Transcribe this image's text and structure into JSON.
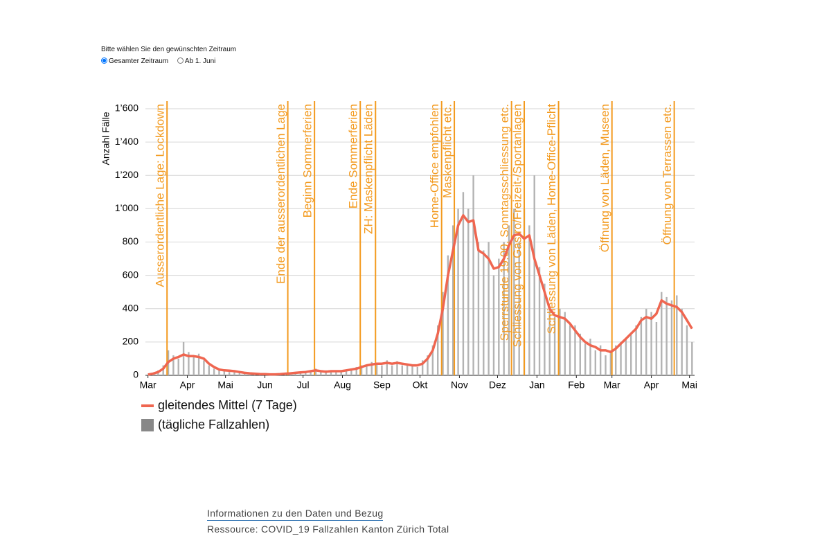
{
  "controls": {
    "prompt": "Bitte wählen Sie den gewünschten Zeitraum",
    "options": [
      "Gesamter Zeitraum",
      "Ab 1. Juni"
    ]
  },
  "footer": {
    "link": "Informationen zu den Daten und Bezug",
    "resource": "Ressource: COVID_19 Fallzahlen Kanton Zürich Total"
  },
  "chart_data": {
    "type": "bar",
    "y_label": "Anzahl Fälle",
    "xlim": [
      -2,
      430
    ],
    "ylim": [
      0,
      1600
    ],
    "yticks": [
      0,
      200,
      400,
      600,
      800,
      {
        "value": 1000,
        "label": "1’000"
      },
      {
        "value": 1200,
        "label": "1’200"
      },
      {
        "value": 1400,
        "label": "1’400"
      },
      {
        "value": 1600,
        "label": "1’600"
      }
    ],
    "xticks": [
      {
        "value": 0,
        "label": "Mar"
      },
      {
        "value": 31,
        "label": "Apr"
      },
      {
        "value": 61,
        "label": "Mai"
      },
      {
        "value": 92,
        "label": "Jun"
      },
      {
        "value": 122,
        "label": "Jul"
      },
      {
        "value": 153,
        "label": "Aug"
      },
      {
        "value": 184,
        "label": "Sep"
      },
      {
        "value": 214,
        "label": "Okt"
      },
      {
        "value": 245,
        "label": "Nov"
      },
      {
        "value": 275,
        "label": "Dez"
      },
      {
        "value": 306,
        "label": "Jan"
      },
      {
        "value": 337,
        "label": "Feb"
      },
      {
        "value": 365,
        "label": "Mar"
      },
      {
        "value": 396,
        "label": "Apr"
      },
      {
        "value": 426,
        "label": "Mai"
      }
    ],
    "grid": true,
    "x": [
      0,
      4,
      8,
      12,
      16,
      20,
      24,
      28,
      32,
      36,
      40,
      44,
      48,
      52,
      56,
      60,
      64,
      68,
      72,
      76,
      80,
      84,
      88,
      92,
      96,
      100,
      104,
      108,
      112,
      116,
      120,
      124,
      128,
      132,
      136,
      140,
      144,
      148,
      152,
      156,
      160,
      164,
      168,
      172,
      176,
      180,
      184,
      188,
      192,
      196,
      200,
      204,
      208,
      212,
      216,
      220,
      224,
      228,
      232,
      236,
      240,
      244,
      248,
      252,
      256,
      260,
      264,
      268,
      272,
      276,
      280,
      284,
      288,
      292,
      296,
      300,
      304,
      308,
      312,
      316,
      320,
      324,
      328,
      332,
      336,
      340,
      344,
      348,
      352,
      356,
      360,
      364,
      368,
      372,
      376,
      380,
      384,
      388,
      392,
      396,
      400,
      404,
      408,
      412,
      416,
      420,
      424,
      428
    ],
    "series": [
      {
        "name": "(tägliche Fallzahlen)",
        "type": "bar",
        "color": "#b3b3b3",
        "values": [
          5,
          12,
          30,
          60,
          150,
          120,
          100,
          200,
          140,
          110,
          130,
          90,
          60,
          40,
          30,
          35,
          20,
          30,
          15,
          20,
          10,
          12,
          5,
          10,
          8,
          5,
          10,
          15,
          10,
          20,
          20,
          25,
          30,
          40,
          20,
          30,
          25,
          20,
          30,
          35,
          30,
          50,
          60,
          55,
          80,
          70,
          60,
          90,
          60,
          85,
          60,
          70,
          55,
          50,
          90,
          120,
          180,
          300,
          500,
          720,
          900,
          1000,
          1100,
          1000,
          1200,
          800,
          750,
          800,
          600,
          700,
          800,
          900,
          1000,
          800,
          1000,
          900,
          1200,
          650,
          550,
          400,
          350,
          400,
          380,
          300,
          300,
          250,
          190,
          220,
          150,
          180,
          120,
          150,
          180,
          200,
          220,
          250,
          300,
          350,
          400,
          380,
          320,
          500,
          470,
          450,
          480,
          400,
          300,
          200
        ]
      },
      {
        "name": "gleitendes Mittel (7 Tage)",
        "type": "line",
        "color": "#ef6650",
        "values": [
          5,
          10,
          20,
          40,
          80,
          100,
          110,
          125,
          115,
          115,
          110,
          100,
          70,
          50,
          35,
          30,
          28,
          25,
          20,
          15,
          12,
          10,
          8,
          7,
          6,
          6,
          7,
          10,
          12,
          15,
          18,
          20,
          25,
          30,
          25,
          22,
          25,
          25,
          25,
          30,
          35,
          40,
          50,
          60,
          65,
          70,
          70,
          75,
          70,
          75,
          70,
          65,
          60,
          60,
          70,
          100,
          150,
          250,
          400,
          600,
          750,
          900,
          960,
          920,
          930,
          750,
          730,
          700,
          640,
          650,
          700,
          780,
          840,
          850,
          820,
          840,
          700,
          600,
          500,
          400,
          360,
          350,
          340,
          310,
          270,
          230,
          200,
          180,
          170,
          150,
          150,
          140,
          160,
          190,
          220,
          250,
          280,
          330,
          350,
          340,
          370,
          450,
          430,
          420,
          410,
          380,
          330,
          280
        ]
      }
    ],
    "event_color": "#f39a1e",
    "events": [
      {
        "x": 15,
        "label": "Ausserordentliche Lage: Lockdown"
      },
      {
        "x": 110,
        "label": "Ende der ausserordentlichen Lage"
      },
      {
        "x": 131,
        "label": "Beginn Sommerferien"
      },
      {
        "x": 167,
        "label": "Ende Sommerferien"
      },
      {
        "x": 179,
        "label": "ZH: Maskenpflicht Läden"
      },
      {
        "x": 231,
        "label": "Home-Office empfohlen"
      },
      {
        "x": 241,
        "label": "Maskenpflicht etc."
      },
      {
        "x": 286,
        "label": "Sperrstunde 19.00, Sonntagsschliessung etc."
      },
      {
        "x": 296,
        "label": "Schliessung von Gastro/Freizeit-/Sportanlagen"
      },
      {
        "x": 323,
        "label": "Schliessung von Läden, Home-Office-Pflicht"
      },
      {
        "x": 365,
        "label": "Öffnung von Läden, Museen"
      },
      {
        "x": 414,
        "label": "Öffnung von Terrassen etc."
      }
    ]
  }
}
